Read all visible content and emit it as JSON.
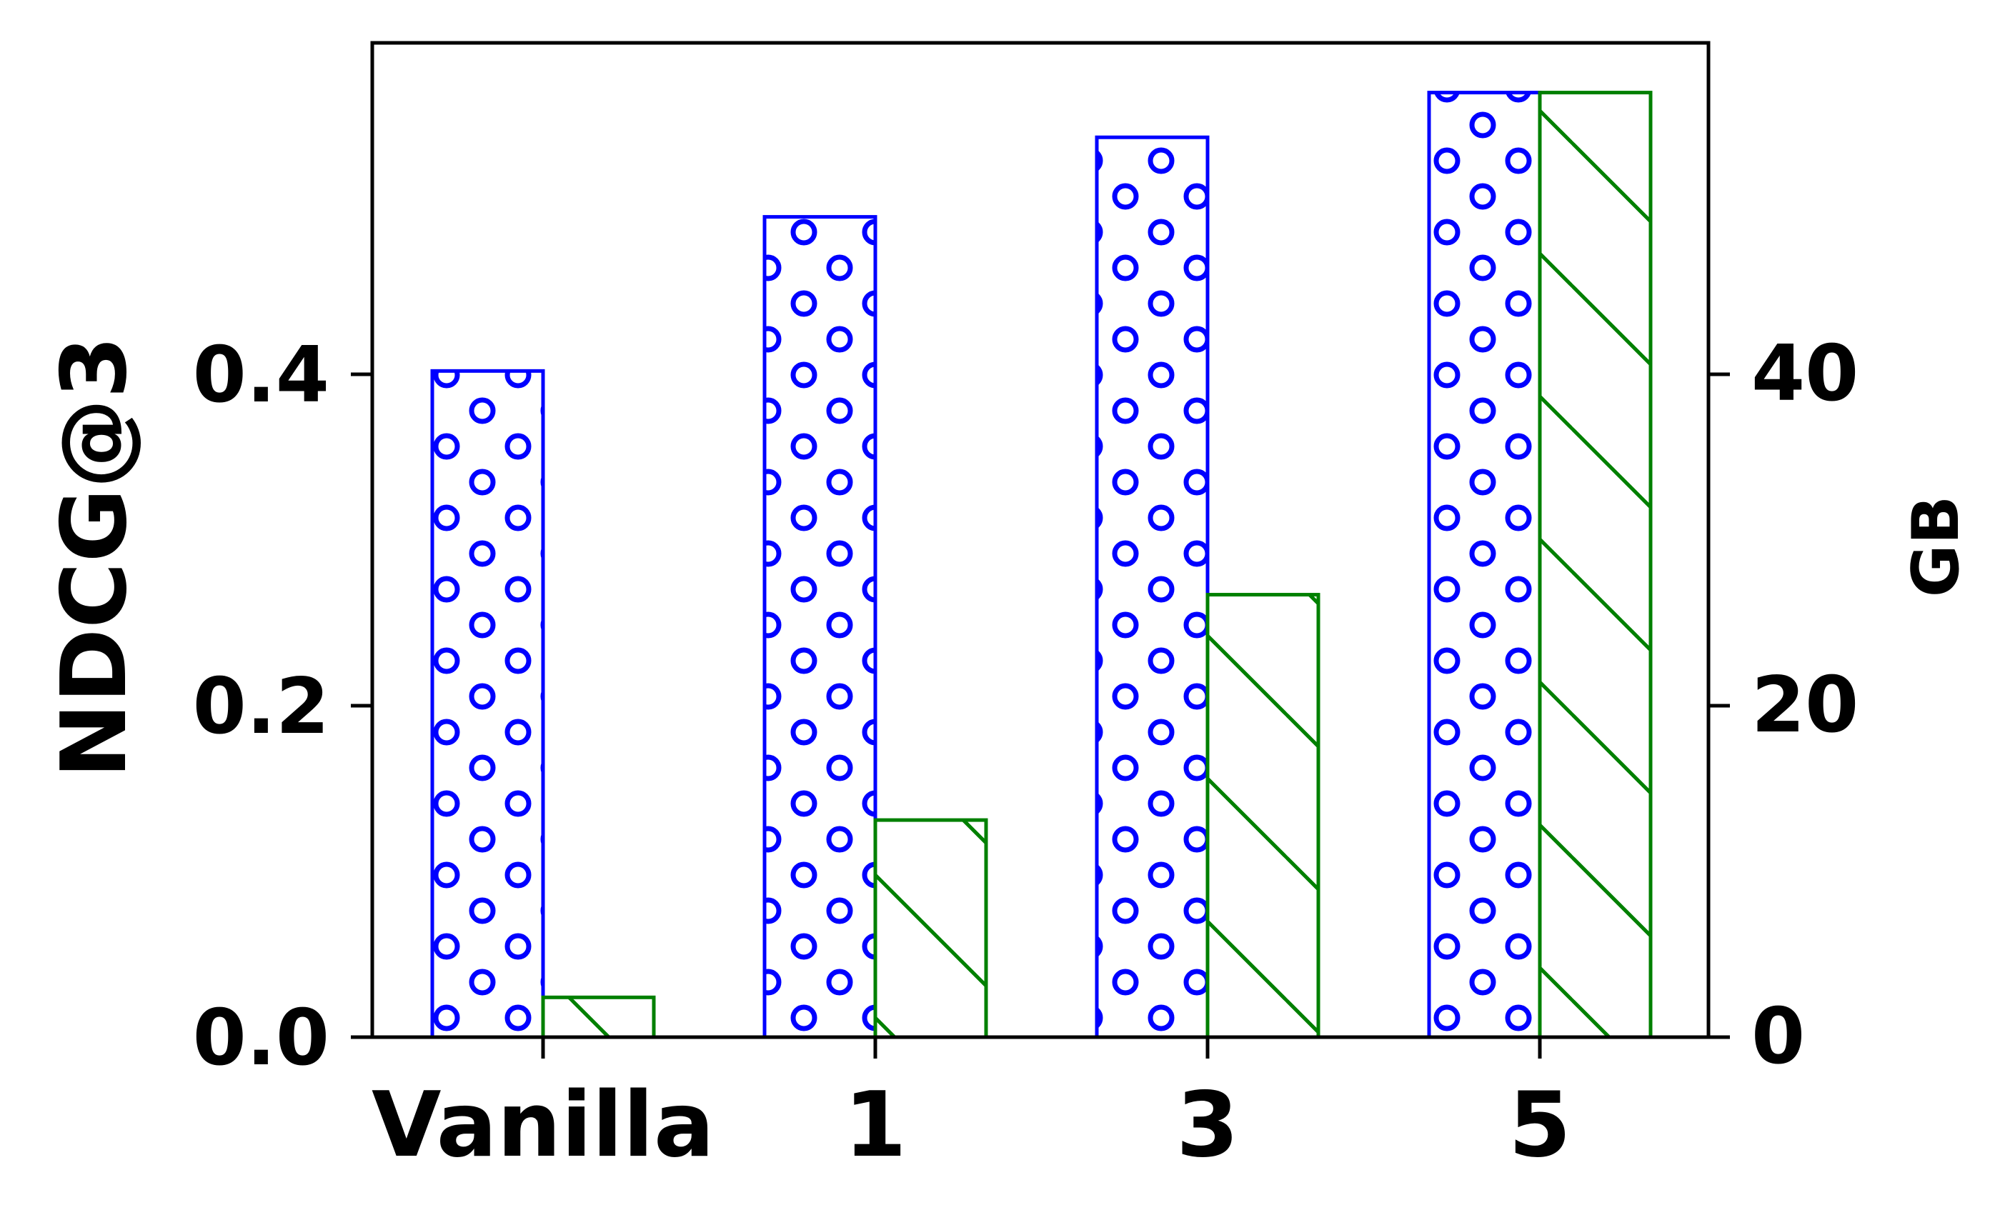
{
  "chart_data": {
    "type": "bar",
    "categories": [
      "Vanilla",
      "1",
      "3",
      "5"
    ],
    "series": [
      {
        "axis": "left",
        "color": "#0000ff",
        "hatch": "circles",
        "values": [
          0.402,
          0.495,
          0.543,
          0.57
        ]
      },
      {
        "axis": "right",
        "color": "#008000",
        "hatch": "diagonal",
        "values": [
          2.4,
          13.1,
          26.7,
          57.0
        ]
      }
    ],
    "ylabel": "NDCG@3",
    "y2label": "GB",
    "ylim": [
      0,
      0.6
    ],
    "y2lim": [
      0,
      60
    ],
    "yticks": [
      "0.0",
      "0.2",
      "0.4"
    ],
    "y2ticks": [
      "0",
      "20",
      "40"
    ],
    "grid": false,
    "legend": "none"
  }
}
